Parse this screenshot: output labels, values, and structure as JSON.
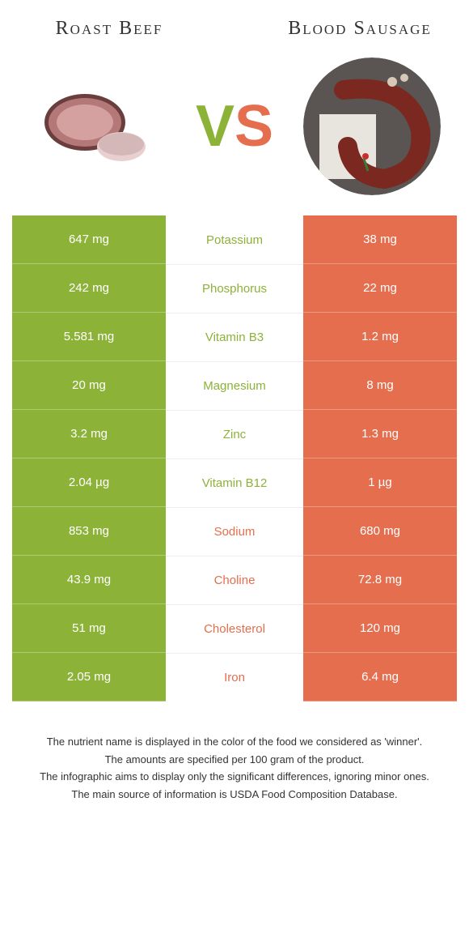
{
  "header": {
    "left_title": "Roast Beef",
    "right_title": "Blood Sausage",
    "vs_v": "V",
    "vs_s": "S"
  },
  "colors": {
    "green": "#8db238",
    "orange": "#e46e4e",
    "mid_green_text": "#8db238",
    "mid_orange_text": "#e46e4e"
  },
  "rows": [
    {
      "left": "647 mg",
      "nutrient": "Potassium",
      "right": "38 mg",
      "winner": "left"
    },
    {
      "left": "242 mg",
      "nutrient": "Phosphorus",
      "right": "22 mg",
      "winner": "left"
    },
    {
      "left": "5.581 mg",
      "nutrient": "Vitamin B3",
      "right": "1.2 mg",
      "winner": "left"
    },
    {
      "left": "20 mg",
      "nutrient": "Magnesium",
      "right": "8 mg",
      "winner": "left"
    },
    {
      "left": "3.2 mg",
      "nutrient": "Zinc",
      "right": "1.3 mg",
      "winner": "left"
    },
    {
      "left": "2.04 µg",
      "nutrient": "Vitamin B12",
      "right": "1 µg",
      "winner": "left"
    },
    {
      "left": "853 mg",
      "nutrient": "Sodium",
      "right": "680 mg",
      "winner": "right"
    },
    {
      "left": "43.9 mg",
      "nutrient": "Choline",
      "right": "72.8 mg",
      "winner": "right"
    },
    {
      "left": "51 mg",
      "nutrient": "Cholesterol",
      "right": "120 mg",
      "winner": "right"
    },
    {
      "left": "2.05 mg",
      "nutrient": "Iron",
      "right": "6.4 mg",
      "winner": "right"
    }
  ],
  "footer": {
    "line1": "The nutrient name is displayed in the color of the food we considered as 'winner'.",
    "line2": "The amounts are specified per 100 gram of the product.",
    "line3": "The infographic aims to display only the significant differences, ignoring minor ones.",
    "line4": "The main source of information is USDA Food Composition Database."
  }
}
